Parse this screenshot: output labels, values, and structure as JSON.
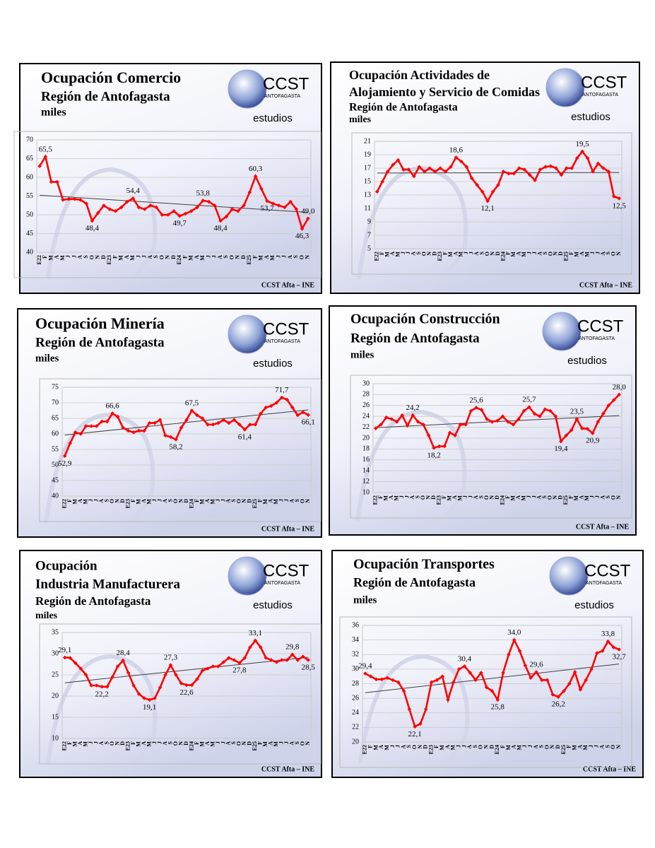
{
  "logo": {
    "name": "CCST",
    "place": "ANTOFAGASTA",
    "tag": "estudios"
  },
  "chart_data": [
    {
      "type": "line",
      "title": [
        "Ocupación Comercio"
      ],
      "subtitle": "Región de Antofagasta",
      "unit": "miles",
      "source": "CCST Afta – INE",
      "categories": [
        "E22",
        "F",
        "M",
        "A",
        "M",
        "J",
        "J",
        "A",
        "S",
        "O",
        "N",
        "D",
        "E23",
        "F",
        "M",
        "A",
        "M",
        "J",
        "J",
        "A",
        "S",
        "O",
        "N",
        "D",
        "E24",
        "F",
        "M",
        "A",
        "M",
        "J",
        "J",
        "A",
        "S",
        "O",
        "N",
        "D",
        "E25",
        "F",
        "M",
        "A",
        "M",
        "J",
        "J",
        "A",
        "S",
        "O",
        "N"
      ],
      "values": [
        63,
        65.5,
        58.8,
        58.8,
        54,
        54.2,
        54.2,
        54,
        53,
        48.4,
        50.5,
        52.5,
        51.5,
        51,
        52,
        53.5,
        54.4,
        52,
        51.5,
        52.5,
        52,
        50,
        50,
        51,
        49.7,
        50.3,
        51,
        52,
        53.8,
        53.5,
        52.5,
        48.4,
        49.5,
        51.5,
        51,
        52.5,
        56,
        60.3,
        57,
        53.7,
        53,
        52.5,
        52,
        53.5,
        51.5,
        46.3,
        49.0
      ],
      "value_labels": [
        null,
        "65,5",
        null,
        null,
        null,
        null,
        null,
        null,
        null,
        "48,4",
        null,
        null,
        null,
        null,
        null,
        null,
        "54,4",
        null,
        null,
        null,
        null,
        null,
        null,
        null,
        "49,7",
        null,
        null,
        null,
        "53,8",
        null,
        null,
        "48,4",
        null,
        null,
        null,
        null,
        null,
        "60,3",
        null,
        "53,7",
        null,
        null,
        null,
        null,
        null,
        "46,3",
        "49,0"
      ],
      "color": "#ff0000",
      "ylim": [
        40,
        70
      ],
      "yticks": [
        40,
        45,
        50,
        55,
        60,
        65,
        70
      ],
      "grid": true,
      "trendline": true
    },
    {
      "type": "line",
      "title": [
        "Ocupación Actividades de",
        "Alojamiento y Servicio de Comidas"
      ],
      "subtitle": "Región de Antofagasta",
      "unit": "miles",
      "source": "CCST Afta – INE",
      "categories": [
        "E22",
        "F",
        "M",
        "A",
        "M",
        "J",
        "J",
        "A",
        "S",
        "O",
        "N",
        "D",
        "E23",
        "F",
        "M",
        "A",
        "M",
        "J",
        "J",
        "A",
        "S",
        "O",
        "N",
        "D",
        "E24",
        "F",
        "M",
        "A",
        "M",
        "J",
        "J",
        "A",
        "S",
        "O",
        "N",
        "D",
        "E25",
        "F",
        "M",
        "A",
        "M",
        "J",
        "J",
        "A",
        "S",
        "O",
        "N"
      ],
      "values": [
        13.5,
        15,
        16.5,
        17.5,
        18.2,
        16.8,
        16.8,
        15.8,
        17.2,
        16.5,
        17,
        16.5,
        17,
        16.5,
        17.2,
        18.6,
        18,
        17.2,
        15.5,
        14.5,
        13.5,
        12.1,
        13.5,
        14.5,
        16.5,
        16.2,
        16.2,
        17,
        16.8,
        16,
        15.2,
        16.8,
        17.2,
        17.3,
        17,
        16,
        17,
        17,
        18.5,
        19.5,
        18.5,
        16.5,
        17.7,
        17,
        16.5,
        12.8,
        12.5
      ],
      "value_labels": [
        null,
        null,
        null,
        null,
        null,
        null,
        null,
        null,
        null,
        null,
        null,
        null,
        null,
        null,
        null,
        "18,6",
        null,
        null,
        null,
        null,
        null,
        "12,1",
        null,
        null,
        null,
        null,
        null,
        null,
        null,
        null,
        null,
        null,
        null,
        null,
        null,
        null,
        null,
        null,
        null,
        "19,5",
        null,
        null,
        null,
        null,
        null,
        null,
        "12,5"
      ],
      "color": "#ff0000",
      "ylim": [
        5,
        21
      ],
      "yticks": [
        5,
        7,
        9,
        11,
        13,
        15,
        17,
        19,
        21
      ],
      "grid": true,
      "trendline": true
    },
    {
      "type": "line",
      "title": [
        "Ocupación Minería"
      ],
      "subtitle": "Región de Antofagasta",
      "unit": "miles",
      "source": "CCST Afta – INE",
      "categories": [
        "E22",
        "F",
        "M",
        "A",
        "M",
        "J",
        "J",
        "A",
        "S",
        "O",
        "N",
        "D",
        "E23",
        "F",
        "M",
        "A",
        "M",
        "J",
        "J",
        "A",
        "S",
        "O",
        "N",
        "D",
        "E24",
        "F",
        "M",
        "A",
        "M",
        "J",
        "J",
        "A",
        "S",
        "O",
        "N",
        "D",
        "E25",
        "F",
        "M",
        "A",
        "M",
        "J",
        "J",
        "A",
        "S",
        "O",
        "N"
      ],
      "values": [
        52.9,
        57,
        60.5,
        60,
        62.5,
        62.5,
        62.5,
        64,
        64,
        66.6,
        65.5,
        62,
        61,
        60.5,
        61,
        61,
        63.5,
        63.5,
        64.5,
        59.5,
        59,
        58.2,
        62,
        64.5,
        67.5,
        66,
        65,
        63,
        63,
        63.5,
        64.5,
        63.5,
        64.5,
        63,
        61.4,
        63,
        63,
        66.5,
        68.5,
        69,
        70,
        71.7,
        71,
        68.5,
        66,
        67,
        66.1
      ],
      "value_labels": [
        "52,9",
        null,
        null,
        null,
        null,
        null,
        null,
        null,
        null,
        "66,6",
        null,
        null,
        null,
        null,
        null,
        null,
        null,
        null,
        null,
        null,
        null,
        "58,2",
        null,
        null,
        "67,5",
        null,
        null,
        null,
        null,
        null,
        null,
        null,
        null,
        null,
        "61,4",
        null,
        null,
        null,
        null,
        null,
        null,
        "71,7",
        null,
        null,
        null,
        null,
        "66,1"
      ],
      "color": "#ff0000",
      "ylim": [
        40,
        75
      ],
      "yticks": [
        40,
        45,
        50,
        55,
        60,
        65,
        70,
        75
      ],
      "grid": true,
      "trendline": true
    },
    {
      "type": "line",
      "title": [
        "Ocupación Construcción"
      ],
      "subtitle": "Región de Antofagasta",
      "unit": "miles",
      "source": "CCST Afta – INE",
      "categories": [
        "E22",
        "F",
        "M",
        "A",
        "M",
        "J",
        "J",
        "A",
        "S",
        "O",
        "N",
        "D",
        "E23",
        "F",
        "M",
        "A",
        "M",
        "J",
        "J",
        "A",
        "S",
        "O",
        "N",
        "D",
        "E24",
        "F",
        "M",
        "A",
        "M",
        "J",
        "J",
        "A",
        "S",
        "O",
        "N",
        "D",
        "E25",
        "F",
        "M",
        "A",
        "M",
        "J",
        "J",
        "A",
        "S",
        "O",
        "N"
      ],
      "values": [
        21.8,
        22.5,
        23.8,
        23.5,
        23,
        24.2,
        22.3,
        24.2,
        23,
        22.5,
        20.5,
        18.2,
        18.5,
        18.5,
        21,
        20.5,
        22.5,
        22.5,
        25,
        25.6,
        25.2,
        23.5,
        23,
        23.2,
        24,
        23,
        22.5,
        23.5,
        25,
        25.7,
        24.5,
        24,
        25.3,
        25,
        24,
        19.4,
        20.5,
        21.5,
        23.5,
        21.8,
        21.7,
        20.9,
        23,
        24.5,
        26,
        27,
        28.0
      ],
      "value_labels": [
        null,
        null,
        null,
        null,
        null,
        null,
        null,
        "24,2",
        null,
        null,
        null,
        "18,2",
        null,
        null,
        null,
        null,
        null,
        null,
        null,
        "25,6",
        null,
        null,
        null,
        null,
        null,
        null,
        null,
        null,
        null,
        "25,7",
        null,
        null,
        null,
        null,
        null,
        "19,4",
        null,
        null,
        "23,5",
        null,
        null,
        "20,9",
        null,
        null,
        null,
        null,
        "28,0"
      ],
      "color": "#ff0000",
      "ylim": [
        10,
        30
      ],
      "yticks": [
        10,
        12,
        14,
        16,
        18,
        20,
        22,
        24,
        26,
        28,
        30
      ],
      "grid": true,
      "trendline": true
    },
    {
      "type": "line",
      "title": [
        "Ocupación",
        "Industria Manufacturera"
      ],
      "subtitle": "Región de Antofagasta",
      "unit": "miles",
      "source": "CCST Afta – INE",
      "categories": [
        "E22",
        "F",
        "M",
        "A",
        "M",
        "J",
        "J",
        "A",
        "S",
        "O",
        "N",
        "D",
        "E23",
        "F",
        "M",
        "A",
        "M",
        "J",
        "J",
        "A",
        "S",
        "O",
        "N",
        "D",
        "E24",
        "F",
        "M",
        "A",
        "M",
        "J",
        "J",
        "A",
        "S",
        "O",
        "N",
        "D",
        "E25",
        "F",
        "M",
        "A",
        "M",
        "J",
        "J",
        "A",
        "S",
        "O",
        "N"
      ],
      "values": [
        29.1,
        29,
        27.8,
        26.5,
        25,
        22.5,
        22.5,
        22.2,
        22.2,
        24.5,
        27,
        28.4,
        25.5,
        22.5,
        20.5,
        19.5,
        19.1,
        19.5,
        22,
        25,
        27.3,
        25,
        23,
        22.6,
        22.6,
        24,
        26,
        26.5,
        27,
        27,
        28,
        29,
        28.5,
        27.8,
        29,
        31.5,
        33.1,
        31.5,
        29,
        28.5,
        28,
        28.5,
        28.5,
        29.8,
        28.5,
        29.3,
        28.5
      ],
      "value_labels": [
        "29,1",
        null,
        null,
        null,
        null,
        null,
        null,
        "22,2",
        null,
        null,
        null,
        "28,4",
        null,
        null,
        null,
        null,
        "19,1",
        null,
        null,
        null,
        "27,3",
        null,
        null,
        "22,6",
        null,
        null,
        null,
        null,
        null,
        null,
        null,
        null,
        null,
        "27,8",
        null,
        null,
        "33,1",
        null,
        null,
        null,
        null,
        null,
        null,
        "29,8",
        null,
        null,
        "28,5"
      ],
      "color": "#ff0000",
      "ylim": [
        10,
        35
      ],
      "yticks": [
        10,
        15,
        20,
        25,
        30,
        35
      ],
      "grid": true,
      "trendline": true
    },
    {
      "type": "line",
      "title": [
        "Ocupación Transportes"
      ],
      "subtitle": "Región de Antofagasta",
      "unit": "miles",
      "source": "CCST Afta – INE",
      "categories": [
        "E22",
        "F",
        "M",
        "A",
        "M",
        "J",
        "J",
        "A",
        "S",
        "O",
        "N",
        "D",
        "E23",
        "F",
        "M",
        "A",
        "M",
        "J",
        "J",
        "A",
        "S",
        "O",
        "N",
        "D",
        "E24",
        "F",
        "M",
        "A",
        "M",
        "J",
        "J",
        "A",
        "S",
        "O",
        "N",
        "D",
        "E25",
        "F",
        "M",
        "A",
        "M",
        "J",
        "J",
        "A",
        "S",
        "O",
        "N"
      ],
      "values": [
        29.4,
        29,
        28.6,
        28.6,
        28.8,
        28.5,
        28.2,
        27,
        24.5,
        22.1,
        22.5,
        24.5,
        28.2,
        28.5,
        29,
        25.8,
        28.2,
        30,
        30.4,
        29.5,
        28.5,
        29.5,
        27.5,
        27,
        25.8,
        29.5,
        32,
        34,
        32.5,
        30.5,
        28.8,
        29.6,
        28.5,
        28.5,
        26.5,
        26.2,
        27,
        28,
        29.6,
        27.2,
        28.5,
        30,
        32.2,
        32.5,
        33.8,
        33,
        32.7
      ],
      "value_labels": [
        "29,4",
        null,
        null,
        null,
        null,
        null,
        null,
        null,
        null,
        "22,1",
        null,
        null,
        null,
        null,
        null,
        null,
        null,
        null,
        "30,4",
        null,
        null,
        null,
        null,
        null,
        "25,8",
        null,
        null,
        "34,0",
        null,
        null,
        null,
        "29,6",
        null,
        null,
        null,
        "26,2",
        null,
        null,
        null,
        null,
        null,
        null,
        null,
        null,
        "33,8",
        null,
        "32,7"
      ],
      "color": "#ff0000",
      "ylim": [
        20,
        36
      ],
      "yticks": [
        20,
        22,
        24,
        26,
        28,
        30,
        32,
        34,
        36
      ],
      "grid": true,
      "trendline": true
    }
  ]
}
